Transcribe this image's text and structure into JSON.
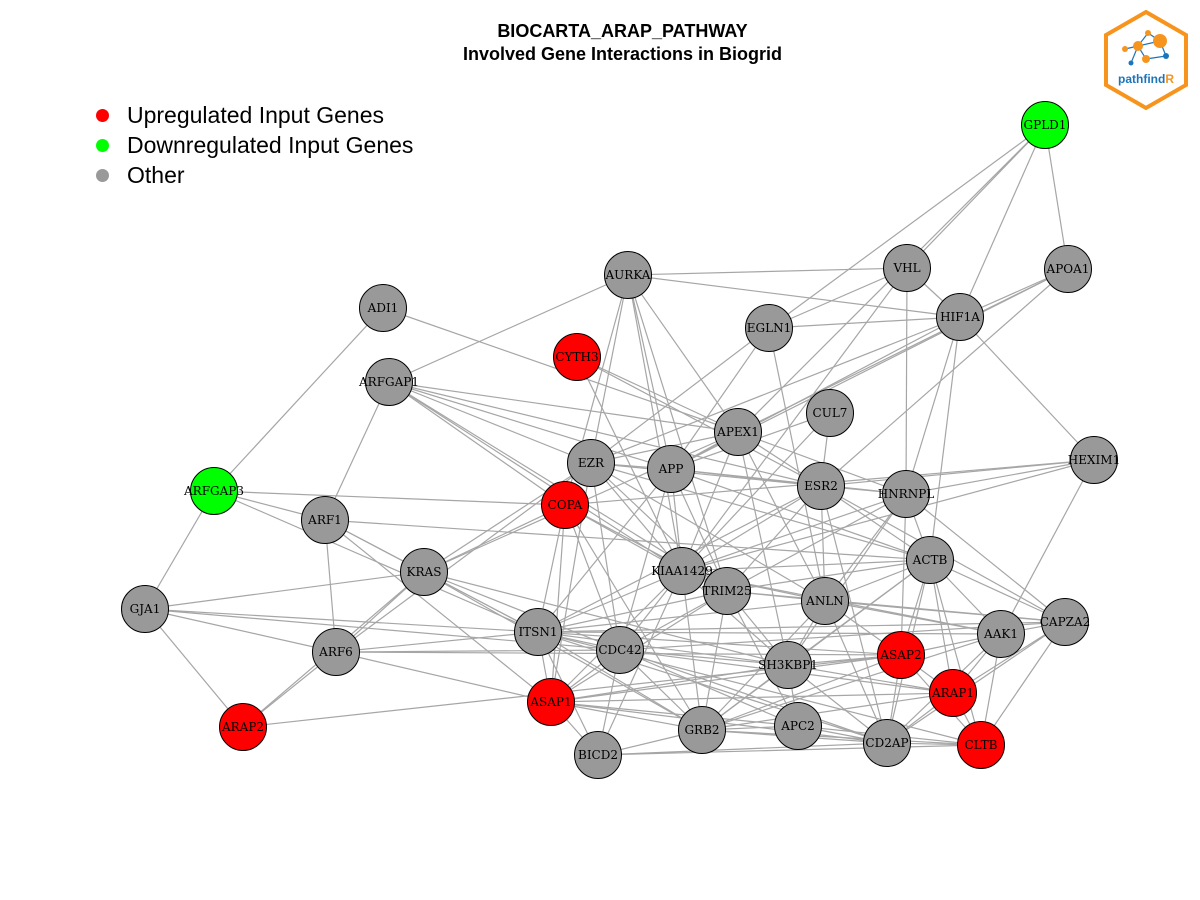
{
  "title": {
    "line1": "BIOCARTA_ARAP_PATHWAY",
    "line2": "Involved Gene Interactions in Biogrid"
  },
  "legend": [
    {
      "label": "Upregulated Input Genes",
      "color": "#ff0000"
    },
    {
      "label": "Downregulated Input Genes",
      "color": "#00ff00"
    },
    {
      "label": "Other",
      "color": "#999999"
    }
  ],
  "logo": {
    "text_main": "pathfind",
    "text_accent": "R",
    "border_color": "#f7941d",
    "accent_color": "#f7941d",
    "text_color": "#1b75bb"
  },
  "colors": {
    "up": "#ff0000",
    "down": "#00ff00",
    "other": "#999999",
    "edge": "#a6a6a6"
  },
  "nodes": [
    {
      "id": "GPLD1",
      "status": "down"
    },
    {
      "id": "VHL",
      "status": "other"
    },
    {
      "id": "APOA1",
      "status": "other"
    },
    {
      "id": "AURKA",
      "status": "other"
    },
    {
      "id": "HIF1A",
      "status": "other"
    },
    {
      "id": "EGLN1",
      "status": "other"
    },
    {
      "id": "ADI1",
      "status": "other"
    },
    {
      "id": "CYTH3",
      "status": "up"
    },
    {
      "id": "ARFGAP1",
      "status": "other"
    },
    {
      "id": "CUL7",
      "status": "other"
    },
    {
      "id": "APEX1",
      "status": "other"
    },
    {
      "id": "HEXIM1",
      "status": "other"
    },
    {
      "id": "EZR",
      "status": "other"
    },
    {
      "id": "APP",
      "status": "other"
    },
    {
      "id": "ESR2",
      "status": "other"
    },
    {
      "id": "ARFGAP3",
      "status": "down"
    },
    {
      "id": "HNRNPL",
      "status": "other"
    },
    {
      "id": "COPA",
      "status": "up"
    },
    {
      "id": "ARF1",
      "status": "other"
    },
    {
      "id": "ACTB",
      "status": "other"
    },
    {
      "id": "KRAS",
      "status": "other"
    },
    {
      "id": "KIAA1429",
      "status": "other"
    },
    {
      "id": "TRIM25",
      "status": "other"
    },
    {
      "id": "ANLN",
      "status": "other"
    },
    {
      "id": "GJA1",
      "status": "other"
    },
    {
      "id": "CAPZA2",
      "status": "other"
    },
    {
      "id": "AAK1",
      "status": "other"
    },
    {
      "id": "ITSN1",
      "status": "other"
    },
    {
      "id": "ARF6",
      "status": "other"
    },
    {
      "id": "CDC42",
      "status": "other"
    },
    {
      "id": "ASAP2",
      "status": "up"
    },
    {
      "id": "SH3KBP1",
      "status": "other"
    },
    {
      "id": "ARAP1",
      "status": "up"
    },
    {
      "id": "ASAP1",
      "status": "up"
    },
    {
      "id": "ARAP2",
      "status": "up"
    },
    {
      "id": "APC2",
      "status": "other"
    },
    {
      "id": "GRB2",
      "status": "other"
    },
    {
      "id": "CD2AP",
      "status": "other"
    },
    {
      "id": "CLTB",
      "status": "up"
    },
    {
      "id": "BICD2",
      "status": "other"
    }
  ],
  "edges": [
    [
      "GPLD1",
      "VHL"
    ],
    [
      "GPLD1",
      "HIF1A"
    ],
    [
      "GPLD1",
      "APOA1"
    ],
    [
      "GPLD1",
      "EGLN1"
    ],
    [
      "GPLD1",
      "APEX1"
    ],
    [
      "VHL",
      "HIF1A"
    ],
    [
      "VHL",
      "AURKA"
    ],
    [
      "VHL",
      "EGLN1"
    ],
    [
      "VHL",
      "HNRNPL"
    ],
    [
      "VHL",
      "KIAA1429"
    ],
    [
      "APOA1",
      "HIF1A"
    ],
    [
      "APOA1",
      "ESR2"
    ],
    [
      "APOA1",
      "APP"
    ],
    [
      "APOA1",
      "APEX1"
    ],
    [
      "HIF1A",
      "AURKA"
    ],
    [
      "HIF1A",
      "EGLN1"
    ],
    [
      "HIF1A",
      "HEXIM1"
    ],
    [
      "HIF1A",
      "ACTB"
    ],
    [
      "HIF1A",
      "HNRNPL"
    ],
    [
      "HIF1A",
      "APP"
    ],
    [
      "HIF1A",
      "EZR"
    ],
    [
      "AURKA",
      "EZR"
    ],
    [
      "AURKA",
      "APP"
    ],
    [
      "AURKA",
      "KIAA1429"
    ],
    [
      "AURKA",
      "COPA"
    ],
    [
      "AURKA",
      "APEX1"
    ],
    [
      "AURKA",
      "TRIM25"
    ],
    [
      "AURKA",
      "ARFGAP1"
    ],
    [
      "EGLN1",
      "ANLN"
    ],
    [
      "EGLN1",
      "EZR"
    ],
    [
      "EGLN1",
      "APP"
    ],
    [
      "ADI1",
      "ARFGAP3"
    ],
    [
      "ADI1",
      "APEX1"
    ],
    [
      "CYTH3",
      "APEX1"
    ],
    [
      "CYTH3",
      "ESR2"
    ],
    [
      "CYTH3",
      "KIAA1429"
    ],
    [
      "ARFGAP1",
      "ARF1"
    ],
    [
      "ARFGAP1",
      "APP"
    ],
    [
      "ARFGAP1",
      "EZR"
    ],
    [
      "ARFGAP1",
      "APEX1"
    ],
    [
      "ARFGAP1",
      "ESR2"
    ],
    [
      "ARFGAP1",
      "KIAA1429"
    ],
    [
      "ARFGAP1",
      "TRIM25"
    ],
    [
      "ARFGAP1",
      "COPA"
    ],
    [
      "CUL7",
      "ESR2"
    ],
    [
      "CUL7",
      "APP"
    ],
    [
      "CUL7",
      "KIAA1429"
    ],
    [
      "APEX1",
      "EZR"
    ],
    [
      "APEX1",
      "APP"
    ],
    [
      "APEX1",
      "ESR2"
    ],
    [
      "APEX1",
      "KRAS"
    ],
    [
      "APEX1",
      "KIAA1429"
    ],
    [
      "APEX1",
      "ANLN"
    ],
    [
      "APEX1",
      "SH3KBP1"
    ],
    [
      "APEX1",
      "HNRNPL"
    ],
    [
      "HEXIM1",
      "ESR2"
    ],
    [
      "HEXIM1",
      "HNRNPL"
    ],
    [
      "HEXIM1",
      "COPA"
    ],
    [
      "HEXIM1",
      "AAK1"
    ],
    [
      "HEXIM1",
      "KIAA1429"
    ],
    [
      "EZR",
      "APP"
    ],
    [
      "EZR",
      "ESR2"
    ],
    [
      "EZR",
      "KIAA1429"
    ],
    [
      "EZR",
      "TRIM25"
    ],
    [
      "EZR",
      "ANLN"
    ],
    [
      "EZR",
      "KRAS"
    ],
    [
      "EZR",
      "ARF6"
    ],
    [
      "EZR",
      "CDC42"
    ],
    [
      "EZR",
      "ASAP1"
    ],
    [
      "EZR",
      "ACTB"
    ],
    [
      "APP",
      "ESR2"
    ],
    [
      "APP",
      "KIAA1429"
    ],
    [
      "APP",
      "TRIM25"
    ],
    [
      "APP",
      "ITSN1"
    ],
    [
      "APP",
      "HNRNPL"
    ],
    [
      "APP",
      "ACTB"
    ],
    [
      "APP",
      "CDC42"
    ],
    [
      "ESR2",
      "HNRNPL"
    ],
    [
      "ESR2",
      "KIAA1429"
    ],
    [
      "ESR2",
      "TRIM25"
    ],
    [
      "ESR2",
      "ANLN"
    ],
    [
      "ESR2",
      "CAPZA2"
    ],
    [
      "ESR2",
      "ACTB"
    ],
    [
      "ESR2",
      "CD2AP"
    ],
    [
      "ESR2",
      "ITSN1"
    ],
    [
      "ARFGAP3",
      "COPA"
    ],
    [
      "ARFGAP3",
      "GJA1"
    ],
    [
      "ARFGAP3",
      "ARF1"
    ],
    [
      "ARFGAP3",
      "ITSN1"
    ],
    [
      "HNRNPL",
      "ACTB"
    ],
    [
      "HNRNPL",
      "ANLN"
    ],
    [
      "HNRNPL",
      "KIAA1429"
    ],
    [
      "HNRNPL",
      "ASAP2"
    ],
    [
      "HNRNPL",
      "CAPZA2"
    ],
    [
      "HNRNPL",
      "TRIM25"
    ],
    [
      "HNRNPL",
      "SH3KBP1"
    ],
    [
      "COPA",
      "KIAA1429"
    ],
    [
      "COPA",
      "ITSN1"
    ],
    [
      "COPA",
      "ASAP1"
    ],
    [
      "COPA",
      "CDC42"
    ],
    [
      "COPA",
      "TRIM25"
    ],
    [
      "COPA",
      "KRAS"
    ],
    [
      "COPA",
      "GRB2"
    ],
    [
      "ARF1",
      "KRAS"
    ],
    [
      "ARF1",
      "ARF6"
    ],
    [
      "ARF1",
      "ASAP1"
    ],
    [
      "ARF1",
      "ACTB"
    ],
    [
      "ARF1",
      "ITSN1"
    ],
    [
      "ACTB",
      "KIAA1429"
    ],
    [
      "ACTB",
      "ANLN"
    ],
    [
      "ACTB",
      "TRIM25"
    ],
    [
      "ACTB",
      "CAPZA2"
    ],
    [
      "ACTB",
      "AAK1"
    ],
    [
      "ACTB",
      "ASAP2"
    ],
    [
      "ACTB",
      "SH3KBP1"
    ],
    [
      "ACTB",
      "ARAP1"
    ],
    [
      "ACTB",
      "CD2AP"
    ],
    [
      "ACTB",
      "CLTB"
    ],
    [
      "ACTB",
      "GRB2"
    ],
    [
      "KRAS",
      "ITSN1"
    ],
    [
      "KRAS",
      "CDC42"
    ],
    [
      "KRAS",
      "ARF6"
    ],
    [
      "KRAS",
      "ARAP2"
    ],
    [
      "KRAS",
      "GRB2"
    ],
    [
      "KRAS",
      "SH3KBP1"
    ],
    [
      "KIAA1429",
      "TRIM25"
    ],
    [
      "KIAA1429",
      "ANLN"
    ],
    [
      "KIAA1429",
      "ITSN1"
    ],
    [
      "KIAA1429",
      "CDC42"
    ],
    [
      "KIAA1429",
      "SH3KBP1"
    ],
    [
      "KIAA1429",
      "GRB2"
    ],
    [
      "KIAA1429",
      "BICD2"
    ],
    [
      "KIAA1429",
      "ASAP1"
    ],
    [
      "KIAA1429",
      "AAK1"
    ],
    [
      "TRIM25",
      "ANLN"
    ],
    [
      "TRIM25",
      "ITSN1"
    ],
    [
      "TRIM25",
      "CDC42"
    ],
    [
      "TRIM25",
      "CAPZA2"
    ],
    [
      "TRIM25",
      "SH3KBP1"
    ],
    [
      "TRIM25",
      "GRB2"
    ],
    [
      "TRIM25",
      "APC2"
    ],
    [
      "TRIM25",
      "ASAP1"
    ],
    [
      "ANLN",
      "CAPZA2"
    ],
    [
      "ANLN",
      "AAK1"
    ],
    [
      "ANLN",
      "ASAP2"
    ],
    [
      "ANLN",
      "CD2AP"
    ],
    [
      "ANLN",
      "SH3KBP1"
    ],
    [
      "ANLN",
      "GRB2"
    ],
    [
      "ANLN",
      "ITSN1"
    ],
    [
      "GJA1",
      "ITSN1"
    ],
    [
      "GJA1",
      "ARF6"
    ],
    [
      "GJA1",
      "ARAP2"
    ],
    [
      "GJA1",
      "CDC42"
    ],
    [
      "GJA1",
      "KRAS"
    ],
    [
      "CAPZA2",
      "AAK1"
    ],
    [
      "CAPZA2",
      "CD2AP"
    ],
    [
      "CAPZA2",
      "CLTB"
    ],
    [
      "CAPZA2",
      "ITSN1"
    ],
    [
      "CAPZA2",
      "CDC42"
    ],
    [
      "CAPZA2",
      "ARAP1"
    ],
    [
      "AAK1",
      "CLTB"
    ],
    [
      "AAK1",
      "ARAP1"
    ],
    [
      "AAK1",
      "ITSN1"
    ],
    [
      "AAK1",
      "GRB2"
    ],
    [
      "AAK1",
      "CD2AP"
    ],
    [
      "AAK1",
      "ASAP2"
    ],
    [
      "ITSN1",
      "CDC42"
    ],
    [
      "ITSN1",
      "ARF6"
    ],
    [
      "ITSN1",
      "ASAP1"
    ],
    [
      "ITSN1",
      "SH3KBP1"
    ],
    [
      "ITSN1",
      "GRB2"
    ],
    [
      "ITSN1",
      "BICD2"
    ],
    [
      "ITSN1",
      "CD2AP"
    ],
    [
      "ITSN1",
      "CLTB"
    ],
    [
      "ITSN1",
      "ASAP2"
    ],
    [
      "ARF6",
      "ARAP2"
    ],
    [
      "ARF6",
      "ASAP1"
    ],
    [
      "ARF6",
      "CDC42"
    ],
    [
      "ARF6",
      "ASAP2"
    ],
    [
      "CDC42",
      "SH3KBP1"
    ],
    [
      "CDC42",
      "GRB2"
    ],
    [
      "CDC42",
      "ASAP1"
    ],
    [
      "CDC42",
      "BICD2"
    ],
    [
      "CDC42",
      "ARAP1"
    ],
    [
      "CDC42",
      "APC2"
    ],
    [
      "CDC42",
      "CD2AP"
    ],
    [
      "ASAP2",
      "SH3KBP1"
    ],
    [
      "ASAP2",
      "ARAP1"
    ],
    [
      "ASAP2",
      "CD2AP"
    ],
    [
      "ASAP2",
      "GRB2"
    ],
    [
      "ASAP2",
      "ASAP1"
    ],
    [
      "ASAP2",
      "CLTB"
    ],
    [
      "SH3KBP1",
      "GRB2"
    ],
    [
      "SH3KBP1",
      "APC2"
    ],
    [
      "SH3KBP1",
      "CD2AP"
    ],
    [
      "SH3KBP1",
      "ASAP1"
    ],
    [
      "SH3KBP1",
      "ARAP1"
    ],
    [
      "ARAP1",
      "CLTB"
    ],
    [
      "ARAP1",
      "CD2AP"
    ],
    [
      "ARAP1",
      "GRB2"
    ],
    [
      "ARAP1",
      "ASAP1"
    ],
    [
      "ASAP1",
      "GRB2"
    ],
    [
      "ASAP1",
      "BICD2"
    ],
    [
      "ASAP1",
      "APC2"
    ],
    [
      "ASAP1",
      "CD2AP"
    ],
    [
      "ARAP2",
      "ASAP2"
    ],
    [
      "APC2",
      "GRB2"
    ],
    [
      "APC2",
      "CD2AP"
    ],
    [
      "APC2",
      "CLTB"
    ],
    [
      "GRB2",
      "CD2AP"
    ],
    [
      "GRB2",
      "BICD2"
    ],
    [
      "GRB2",
      "CLTB"
    ],
    [
      "CD2AP",
      "CLTB"
    ],
    [
      "CD2AP",
      "BICD2"
    ],
    [
      "CLTB",
      "BICD2"
    ]
  ]
}
